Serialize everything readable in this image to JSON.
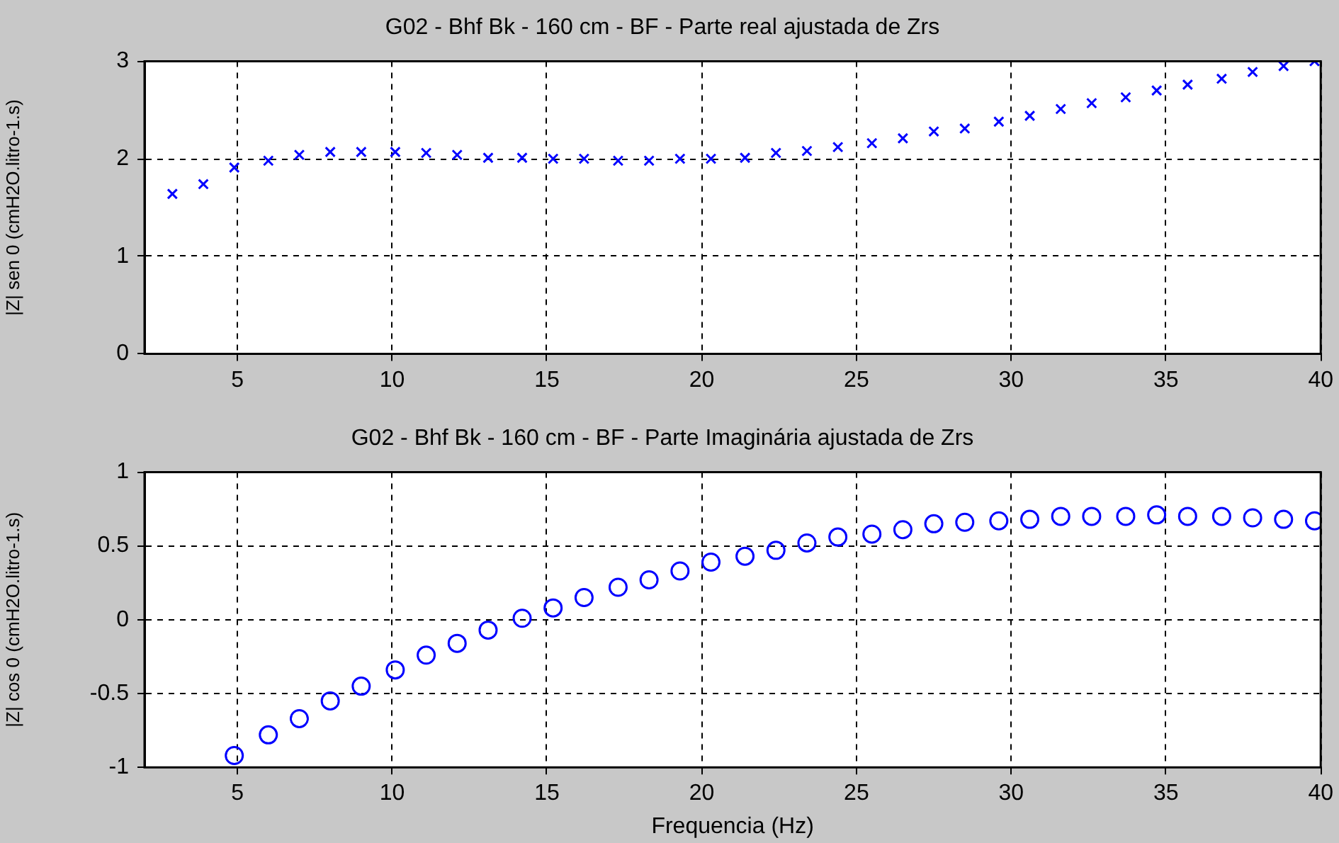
{
  "chart_data": [
    {
      "type": "scatter",
      "title": "G02 - Bhf Bk - 160 cm - BF - Parte real ajustada de Zrs",
      "ylabel": "|Z| sen 0 (cmH2O.litro-1.s)",
      "x": [
        2.9,
        3.9,
        4.9,
        6.0,
        7.0,
        8.0,
        9.0,
        10.1,
        11.1,
        12.1,
        13.1,
        14.2,
        15.2,
        16.2,
        17.3,
        18.3,
        19.3,
        20.3,
        21.4,
        22.4,
        23.4,
        24.4,
        25.5,
        26.5,
        27.5,
        28.5,
        29.6,
        30.6,
        31.6,
        32.6,
        33.7,
        34.7,
        35.7,
        36.8,
        37.8,
        38.8,
        39.8
      ],
      "series": [
        {
          "color": "#0000ff",
          "values": [
            1.64,
            1.74,
            1.91,
            1.98,
            2.04,
            2.07,
            2.07,
            2.07,
            2.06,
            2.04,
            2.01,
            2.01,
            2.0,
            2.0,
            1.98,
            1.98,
            2.0,
            2.0,
            2.01,
            2.06,
            2.08,
            2.12,
            2.16,
            2.21,
            2.28,
            2.31,
            2.38,
            2.44,
            2.51,
            2.57,
            2.63,
            2.7,
            2.76,
            2.82,
            2.89,
            2.95,
            3.0
          ]
        }
      ],
      "marker": "cross",
      "xlim": [
        2,
        40
      ],
      "ylim": [
        0,
        3
      ],
      "xticks": [
        5,
        10,
        15,
        20,
        25,
        30,
        35,
        40
      ],
      "yticks": [
        0,
        1,
        2,
        3
      ],
      "grid": true
    },
    {
      "type": "scatter",
      "title": "G02 - Bhf Bk - 160 cm - BF - Parte Imaginária ajustada de Zrs",
      "ylabel": "|Z| cos 0 (cmH2O.litro-1.s)",
      "xlabel": "Frequencia (Hz)",
      "x": [
        4.9,
        6.0,
        7.0,
        8.0,
        9.0,
        10.1,
        11.1,
        12.1,
        13.1,
        14.2,
        15.2,
        16.2,
        17.3,
        18.3,
        19.3,
        20.3,
        21.4,
        22.4,
        23.4,
        24.4,
        25.5,
        26.5,
        27.5,
        28.5,
        29.6,
        30.6,
        31.6,
        32.6,
        33.7,
        34.7,
        35.7,
        36.8,
        37.8,
        38.8,
        39.8
      ],
      "series": [
        {
          "color": "#0000ff",
          "values": [
            -0.92,
            -0.78,
            -0.67,
            -0.55,
            -0.45,
            -0.34,
            -0.24,
            -0.16,
            -0.07,
            0.01,
            0.08,
            0.15,
            0.22,
            0.27,
            0.33,
            0.39,
            0.43,
            0.47,
            0.52,
            0.56,
            0.58,
            0.61,
            0.65,
            0.66,
            0.67,
            0.68,
            0.7,
            0.7,
            0.7,
            0.71,
            0.7,
            0.7,
            0.69,
            0.68,
            0.67
          ]
        }
      ],
      "marker": "circle",
      "xlim": [
        2,
        40
      ],
      "ylim": [
        -1,
        1
      ],
      "xticks": [
        5,
        10,
        15,
        20,
        25,
        30,
        35,
        40
      ],
      "yticks": [
        -1,
        -0.5,
        0,
        0.5,
        1
      ],
      "grid": true
    }
  ]
}
